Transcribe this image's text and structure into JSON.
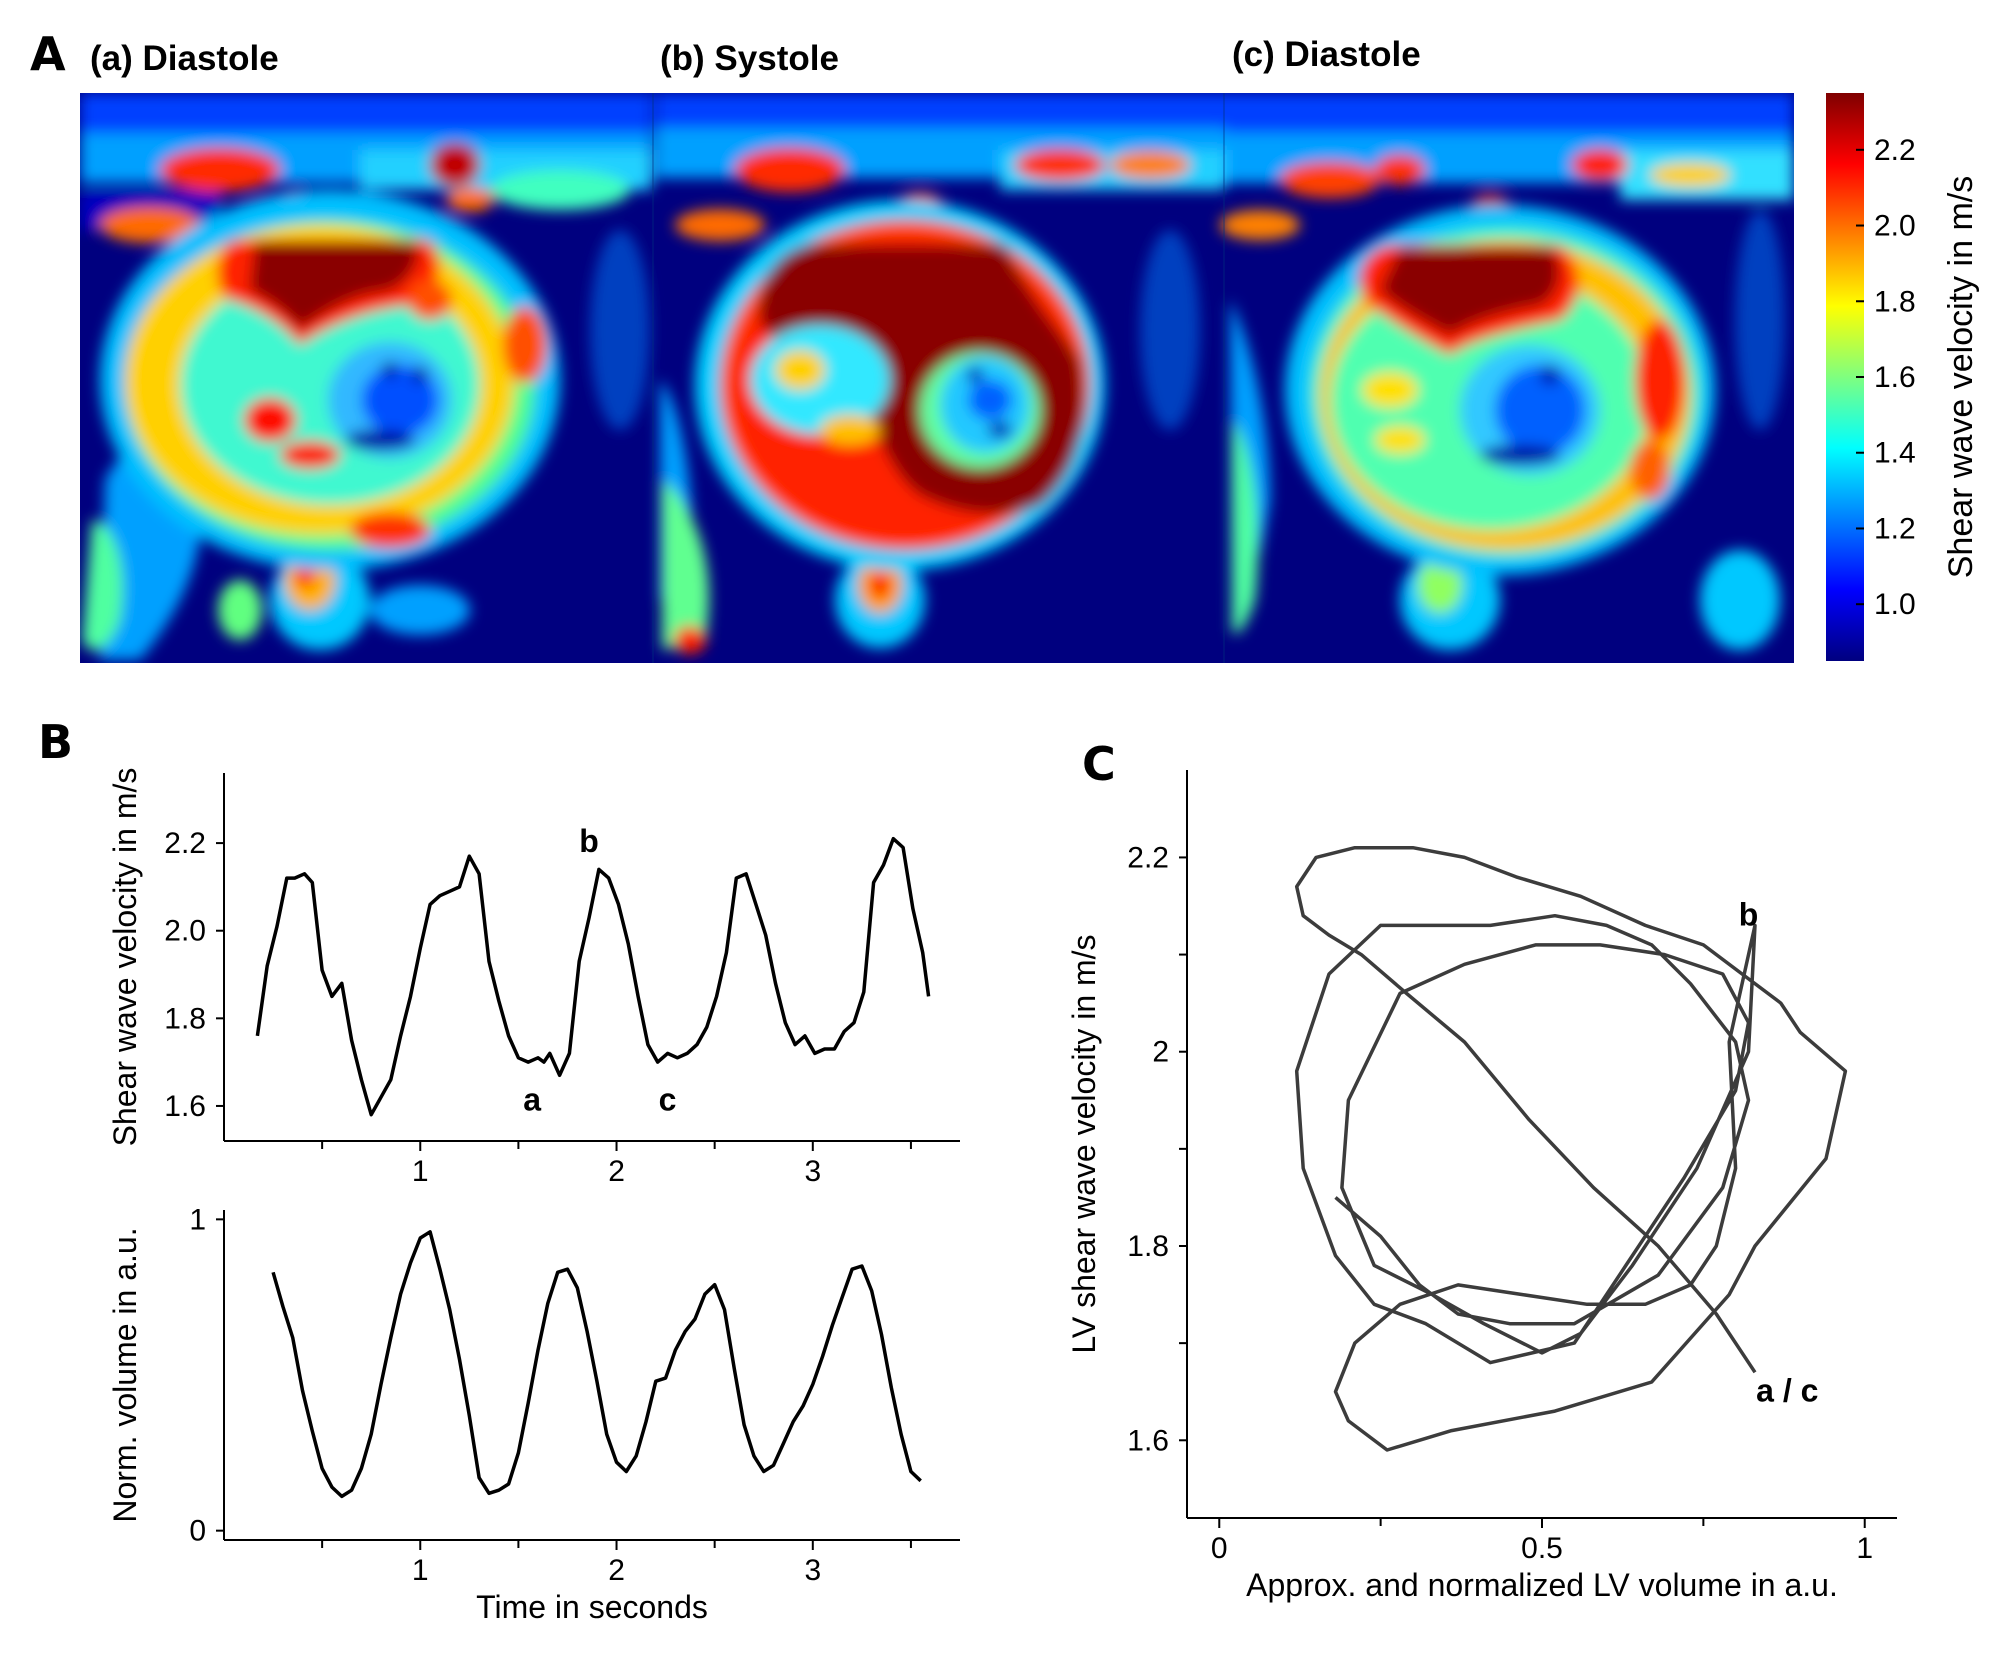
{
  "panel_letters": {
    "a": "A",
    "b": "B",
    "c": "C"
  },
  "panel_a": {
    "titles": [
      "(a) Diastole",
      "(b) Systole",
      "(c) Diastole"
    ],
    "colormap": "jet",
    "colorbar": {
      "label": "Shear wave velocity in m/s",
      "range": [
        0.85,
        2.35
      ],
      "ticks": [
        "1.0",
        "1.2",
        "1.4",
        "1.6",
        "1.8",
        "2.0",
        "2.2"
      ],
      "colors": [
        "#00007f",
        "#0000ff",
        "#007fff",
        "#00ffff",
        "#7fff7f",
        "#ffff00",
        "#ff7f00",
        "#ff0000",
        "#7f0000"
      ]
    }
  },
  "chart_data": [
    {
      "id": "B-top",
      "type": "line",
      "xlabel": "",
      "ylabel": "Shear wave velocity in m/s",
      "xlim": [
        0.0,
        3.75
      ],
      "ylim": [
        1.52,
        2.36
      ],
      "xticks": [
        1,
        2,
        3
      ],
      "xtick_labels": [
        "1",
        "2",
        "3"
      ],
      "minor_xticks": [
        0.5,
        1.5,
        2.5,
        3.5
      ],
      "yticks": [
        1.6,
        1.8,
        2.0,
        2.2
      ],
      "ytick_labels": [
        "1.6",
        "1.8",
        "2.0",
        "2.2"
      ],
      "series": [
        {
          "name": "Shear wave velocity",
          "x": [
            0.17,
            0.22,
            0.27,
            0.32,
            0.36,
            0.41,
            0.45,
            0.5,
            0.55,
            0.6,
            0.65,
            0.7,
            0.75,
            0.8,
            0.85,
            0.9,
            0.95,
            1.0,
            1.05,
            1.1,
            1.15,
            1.2,
            1.25,
            1.3,
            1.35,
            1.4,
            1.45,
            1.5,
            1.55,
            1.6,
            1.63,
            1.66,
            1.71,
            1.76,
            1.81,
            1.86,
            1.91,
            1.96,
            2.01,
            2.06,
            2.11,
            2.16,
            2.21,
            2.26,
            2.31,
            2.36,
            2.41,
            2.46,
            2.51,
            2.56,
            2.61,
            2.66,
            2.71,
            2.76,
            2.81,
            2.86,
            2.91,
            2.96,
            3.01,
            3.06,
            3.11,
            3.16,
            3.21,
            3.26,
            3.31,
            3.36,
            3.41,
            3.46,
            3.51,
            3.56,
            3.59
          ],
          "values": [
            1.76,
            1.92,
            2.01,
            2.12,
            2.12,
            2.13,
            2.11,
            1.91,
            1.85,
            1.88,
            1.75,
            1.66,
            1.58,
            1.62,
            1.66,
            1.76,
            1.85,
            1.96,
            2.06,
            2.08,
            2.09,
            2.1,
            2.17,
            2.13,
            1.93,
            1.84,
            1.76,
            1.71,
            1.7,
            1.71,
            1.7,
            1.72,
            1.67,
            1.72,
            1.93,
            2.03,
            2.14,
            2.12,
            2.06,
            1.97,
            1.85,
            1.74,
            1.7,
            1.72,
            1.71,
            1.72,
            1.74,
            1.78,
            1.85,
            1.95,
            2.12,
            2.13,
            2.06,
            1.99,
            1.88,
            1.79,
            1.74,
            1.76,
            1.72,
            1.73,
            1.73,
            1.77,
            1.79,
            1.86,
            2.11,
            2.15,
            2.21,
            2.19,
            2.05,
            1.95,
            1.85
          ]
        }
      ],
      "annotations": [
        {
          "text": "b",
          "x": 1.86,
          "y": 2.18
        },
        {
          "text": "a",
          "x": 1.57,
          "y": 1.59
        },
        {
          "text": "c",
          "x": 2.26,
          "y": 1.59
        }
      ]
    },
    {
      "id": "B-bottom",
      "type": "line",
      "xlabel": "Time in seconds",
      "ylabel": "Norm. volume in a.u.",
      "xlim": [
        0.0,
        3.75
      ],
      "ylim": [
        -0.03,
        1.03
      ],
      "xticks": [
        1,
        2,
        3
      ],
      "xtick_labels": [
        "1",
        "2",
        "3"
      ],
      "minor_xticks": [
        0.5,
        1.5,
        2.5,
        3.5
      ],
      "yticks": [
        0,
        1
      ],
      "ytick_labels": [
        "0",
        "1"
      ],
      "series": [
        {
          "name": "Normalized volume",
          "x": [
            0.25,
            0.3,
            0.35,
            0.4,
            0.45,
            0.5,
            0.55,
            0.6,
            0.65,
            0.7,
            0.75,
            0.8,
            0.85,
            0.9,
            0.95,
            1.0,
            1.05,
            1.1,
            1.15,
            1.2,
            1.25,
            1.3,
            1.35,
            1.4,
            1.45,
            1.5,
            1.55,
            1.6,
            1.65,
            1.7,
            1.75,
            1.8,
            1.85,
            1.9,
            1.95,
            2.0,
            2.05,
            2.1,
            2.15,
            2.2,
            2.25,
            2.3,
            2.35,
            2.4,
            2.45,
            2.5,
            2.55,
            2.6,
            2.65,
            2.7,
            2.75,
            2.8,
            2.85,
            2.9,
            2.95,
            3.0,
            3.05,
            3.1,
            3.15,
            3.2,
            3.25,
            3.3,
            3.35,
            3.4,
            3.45,
            3.5,
            3.55
          ],
          "values": [
            0.83,
            0.72,
            0.62,
            0.45,
            0.32,
            0.2,
            0.14,
            0.11,
            0.13,
            0.2,
            0.31,
            0.47,
            0.62,
            0.76,
            0.86,
            0.94,
            0.96,
            0.84,
            0.71,
            0.55,
            0.37,
            0.17,
            0.12,
            0.13,
            0.15,
            0.25,
            0.41,
            0.58,
            0.73,
            0.83,
            0.84,
            0.78,
            0.64,
            0.48,
            0.31,
            0.22,
            0.19,
            0.24,
            0.35,
            0.48,
            0.49,
            0.58,
            0.64,
            0.68,
            0.76,
            0.79,
            0.71,
            0.52,
            0.34,
            0.24,
            0.19,
            0.21,
            0.28,
            0.35,
            0.4,
            0.47,
            0.56,
            0.66,
            0.75,
            0.84,
            0.85,
            0.77,
            0.63,
            0.46,
            0.31,
            0.19,
            0.16
          ]
        }
      ]
    },
    {
      "id": "C",
      "type": "line",
      "xlabel": "Approx. and normalized LV volume in a.u.",
      "ylabel": "LV shear wave velocity in m/s",
      "xlim": [
        -0.05,
        1.05
      ],
      "ylim": [
        1.52,
        2.29
      ],
      "xticks": [
        0,
        0.5,
        1
      ],
      "xtick_labels": [
        "0",
        "0.5",
        "1"
      ],
      "minor_xticks": [
        0.25,
        0.75
      ],
      "yticks": [
        1.6,
        1.8,
        2.0,
        2.2
      ],
      "ytick_labels": [
        "1.6",
        "1.8",
        "2",
        "2.2"
      ],
      "minor_yticks": [
        1.7,
        1.9,
        2.1
      ],
      "series": [
        {
          "name": "Velocity-volume loop",
          "x": [
            0.83,
            0.77,
            0.68,
            0.58,
            0.48,
            0.38,
            0.29,
            0.22,
            0.17,
            0.13,
            0.12,
            0.15,
            0.21,
            0.3,
            0.38,
            0.46,
            0.56,
            0.66,
            0.75,
            0.81,
            0.87,
            0.9,
            0.97,
            0.94,
            0.83,
            0.79,
            0.67,
            0.52,
            0.36,
            0.26,
            0.2,
            0.18,
            0.21,
            0.28,
            0.37,
            0.47,
            0.57,
            0.66,
            0.73,
            0.77,
            0.8,
            0.79,
            0.83,
            0.82,
            0.74,
            0.64,
            0.56,
            0.5,
            0.41,
            0.33,
            0.24,
            0.19,
            0.2,
            0.28,
            0.38,
            0.49,
            0.59,
            0.69,
            0.78,
            0.82,
            0.8,
            0.72,
            0.63,
            0.55,
            0.42,
            0.32,
            0.24,
            0.18,
            0.13,
            0.12,
            0.17,
            0.25,
            0.33,
            0.42,
            0.52,
            0.6,
            0.67,
            0.73,
            0.8,
            0.82,
            0.78,
            0.68,
            0.55,
            0.45,
            0.37,
            0.31,
            0.25,
            0.18
          ],
          "values": [
            1.67,
            1.73,
            1.8,
            1.86,
            1.93,
            2.01,
            2.06,
            2.1,
            2.12,
            2.14,
            2.17,
            2.2,
            2.21,
            2.21,
            2.2,
            2.18,
            2.16,
            2.13,
            2.11,
            2.08,
            2.05,
            2.02,
            1.98,
            1.89,
            1.8,
            1.75,
            1.66,
            1.63,
            1.61,
            1.59,
            1.62,
            1.65,
            1.7,
            1.74,
            1.76,
            1.75,
            1.74,
            1.74,
            1.76,
            1.8,
            1.88,
            2.01,
            2.13,
            2.0,
            1.88,
            1.78,
            1.71,
            1.69,
            1.72,
            1.75,
            1.78,
            1.86,
            1.95,
            2.06,
            2.09,
            2.11,
            2.11,
            2.1,
            2.08,
            2.03,
            1.96,
            1.87,
            1.78,
            1.7,
            1.68,
            1.72,
            1.74,
            1.79,
            1.88,
            1.98,
            2.08,
            2.13,
            2.13,
            2.13,
            2.14,
            2.13,
            2.11,
            2.07,
            2.01,
            1.95,
            1.86,
            1.77,
            1.72,
            1.72,
            1.73,
            1.76,
            1.81,
            1.85
          ]
        }
      ],
      "annotations": [
        {
          "text": "b",
          "x": 0.82,
          "y": 2.13
        },
        {
          "text": "a / c",
          "x": 0.88,
          "y": 1.64
        }
      ]
    }
  ]
}
